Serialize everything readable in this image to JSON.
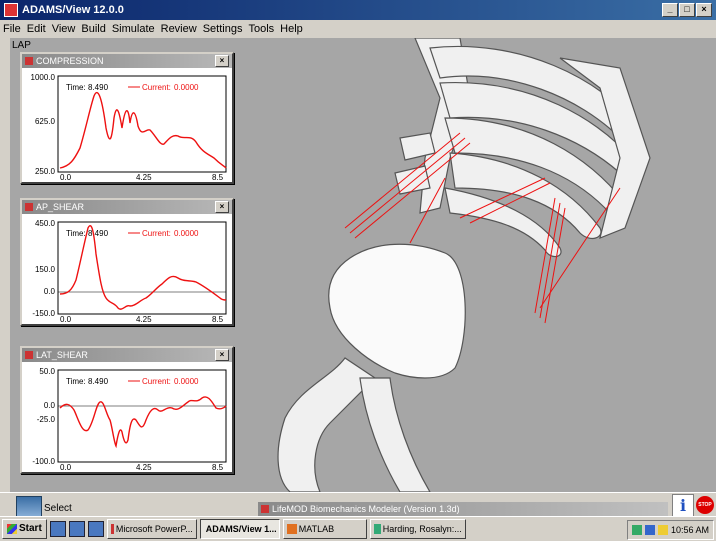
{
  "window": {
    "title": "ADAMS/View 12.0.0",
    "buttons": [
      "_",
      "□",
      "×"
    ]
  },
  "menu": [
    "File",
    "Edit",
    "View",
    "Build",
    "Simulate",
    "Review",
    "Settings",
    "Tools",
    "Help"
  ],
  "viewport_label": "LAP",
  "plots": [
    {
      "id": "compression",
      "title": "COMPRESSION",
      "time_label": "Time:",
      "time_value": "8.490",
      "current_label": "Current:",
      "current_value": "0.0000",
      "yticks": [
        "1000.0",
        "625.0",
        "250.0"
      ],
      "xticks": [
        "0.0",
        "4.25",
        "8.5"
      ]
    },
    {
      "id": "ap_shear",
      "title": "AP_SHEAR",
      "time_label": "Time:",
      "time_value": "8.490",
      "current_label": "Current:",
      "current_value": "0.0000",
      "yticks": [
        "450.0",
        "150.0",
        "0.0",
        "-150.0"
      ],
      "xticks": [
        "0.0",
        "4.25",
        "8.5"
      ]
    },
    {
      "id": "lat_shear",
      "title": "LAT_SHEAR",
      "time_label": "Time:",
      "time_value": "8.490",
      "current_label": "Current:",
      "current_value": "0.0000",
      "yticks": [
        "50.0",
        "0.0",
        "-25.0",
        "-100.0"
      ],
      "xticks": [
        "0.0",
        "4.25",
        "8.5"
      ]
    }
  ],
  "bottom": {
    "select_label": "Select",
    "lifemod_title": "LifeMOD Biomechanics Modeler (Version 1.3d)",
    "info": "i",
    "stop": "STOP"
  },
  "taskbar": {
    "start": "Start",
    "tasks": [
      {
        "label": "Microsoft PowerP...",
        "active": false
      },
      {
        "label": "ADAMS/View 1...",
        "active": true
      },
      {
        "label": "MATLAB",
        "active": false
      },
      {
        "label": "Harding, Rosalyn:...",
        "active": false
      }
    ],
    "clock": "10:56 AM"
  },
  "colors": {
    "trace": "#ee1111",
    "title_blue": "#0a246a"
  }
}
